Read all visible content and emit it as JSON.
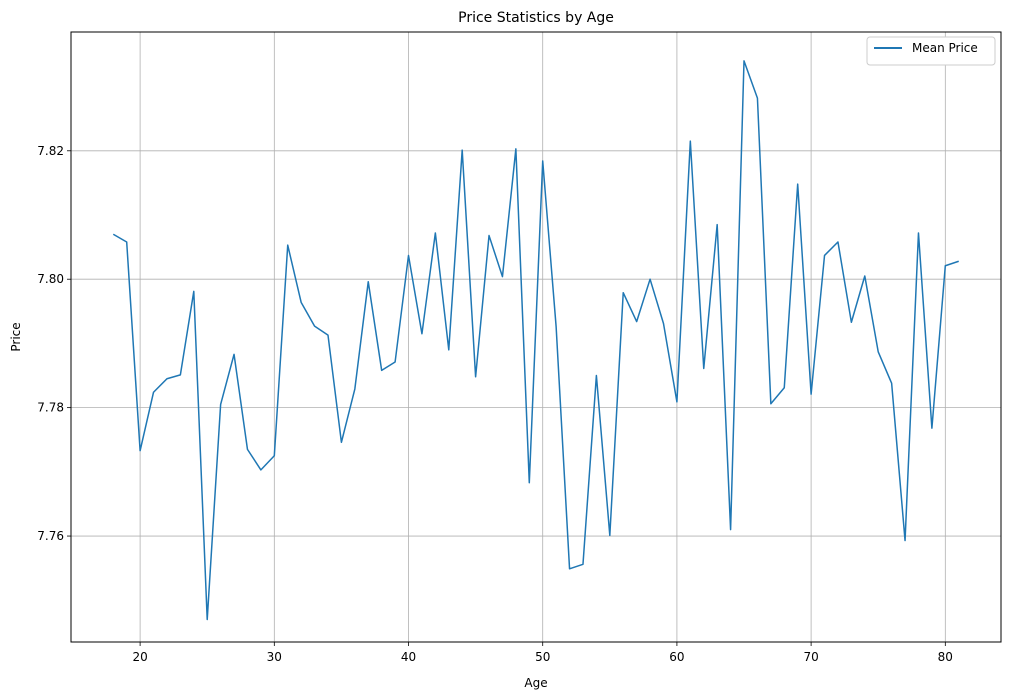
{
  "chart_data": {
    "type": "line",
    "title": "Price Statistics by Age",
    "xlabel": "Age",
    "ylabel": "Price",
    "xlim": [
      14.85,
      84.15
    ],
    "ylim": [
      7.7435,
      7.8385
    ],
    "grid": true,
    "legend_position": "top-right",
    "xticks": [
      20,
      30,
      40,
      50,
      60,
      70,
      80
    ],
    "yticks": [
      7.76,
      7.78,
      7.8,
      7.82
    ],
    "ytick_labels": [
      "7.76",
      "7.78",
      "7.80",
      "7.82"
    ],
    "series": [
      {
        "name": "Mean Price",
        "color": "#1f77b4",
        "x": [
          18,
          19,
          20,
          21,
          22,
          23,
          24,
          25,
          26,
          27,
          28,
          29,
          30,
          31,
          32,
          33,
          34,
          35,
          36,
          37,
          38,
          39,
          40,
          41,
          42,
          43,
          44,
          45,
          46,
          47,
          48,
          49,
          50,
          51,
          52,
          53,
          54,
          55,
          56,
          57,
          58,
          59,
          60,
          61,
          62,
          63,
          64,
          65,
          66,
          67,
          68,
          69,
          70,
          71,
          72,
          73,
          74,
          75,
          76,
          77,
          78,
          79,
          80,
          81
        ],
        "values": [
          7.807,
          7.8058,
          7.7733,
          7.7824,
          7.7845,
          7.7851,
          7.7981,
          7.747,
          7.7805,
          7.7883,
          7.7735,
          7.7703,
          7.7725,
          7.8053,
          7.7964,
          7.7927,
          7.7913,
          7.7746,
          7.7829,
          7.7996,
          7.7858,
          7.7871,
          7.8037,
          7.7915,
          7.8072,
          7.789,
          7.8201,
          7.7848,
          7.8068,
          7.8004,
          7.8203,
          7.7683,
          7.8184,
          7.7926,
          7.7549,
          7.7556,
          7.785,
          7.7601,
          7.7979,
          7.7934,
          7.8,
          7.7931,
          7.7809,
          7.8215,
          7.7861,
          7.8085,
          7.761,
          7.834,
          7.8282,
          7.7806,
          7.7831,
          7.8148,
          7.7821,
          7.8037,
          7.8058,
          7.7933,
          7.8005,
          7.7887,
          7.7838,
          7.7593,
          7.8072,
          7.7768,
          7.8021,
          7.8028
        ]
      }
    ]
  }
}
